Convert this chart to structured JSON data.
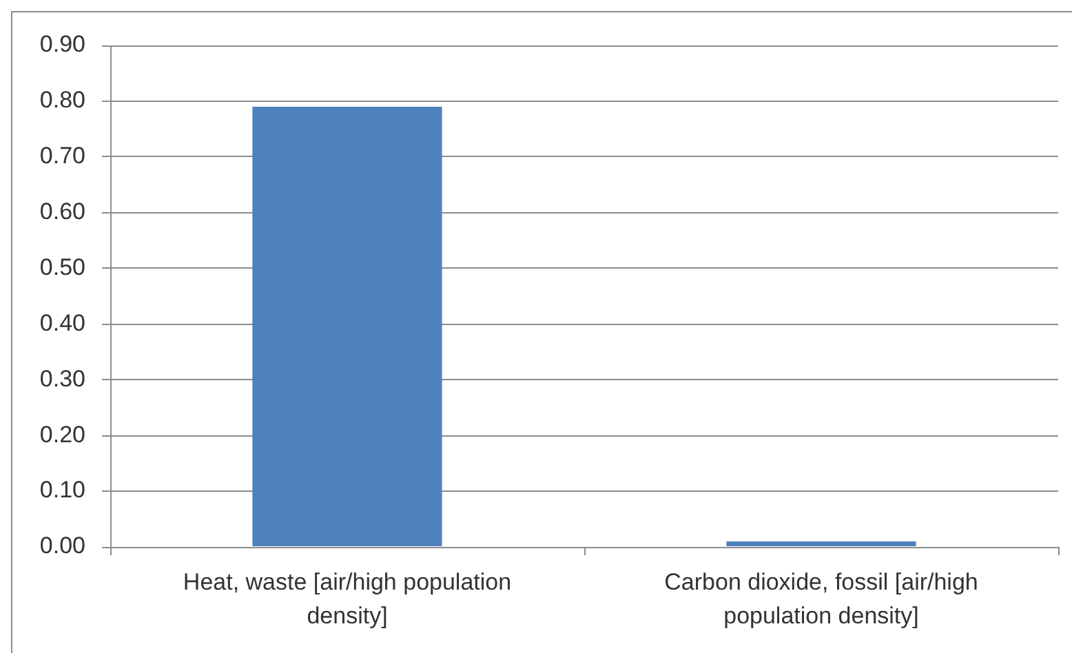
{
  "chart_data": {
    "type": "bar",
    "categories": [
      "Heat, waste [air/high population density]",
      "Carbon dioxide, fossil [air/high population density]"
    ],
    "values": [
      0.79,
      0.01
    ],
    "color": "#4f81bd",
    "ylim": [
      0,
      0.9
    ],
    "yticks": [
      {
        "value": 0,
        "label": "0.00"
      },
      {
        "value": 0.1,
        "label": "0.10"
      },
      {
        "value": 0.2,
        "label": "0.20"
      },
      {
        "value": 0.3,
        "label": "0.30"
      },
      {
        "value": 0.4,
        "label": "0.40"
      },
      {
        "value": 0.5,
        "label": "0.50"
      },
      {
        "value": 0.6,
        "label": "0.60"
      },
      {
        "value": 0.7,
        "label": "0.70"
      },
      {
        "value": 0.8,
        "label": "0.80"
      },
      {
        "value": 0.9,
        "label": "0.90"
      }
    ],
    "grid": "y"
  }
}
